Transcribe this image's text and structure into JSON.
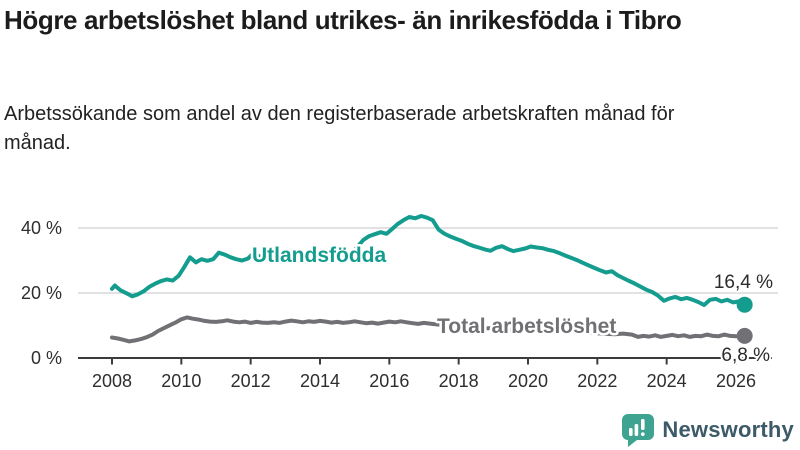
{
  "header": {
    "title": "Högre arbetslöshet bland utrikes- än inrikesfödda i Tibro",
    "subtitle": "Arbetssökande som andel av den registerbaserade arbetskraften månad för månad."
  },
  "footer": {
    "brand": "Newsworthy",
    "logo_icon": "bar-chart-speech-bubble-icon"
  },
  "colors": {
    "accent_teal": "#149D8F",
    "series_gray": "#717175",
    "grid": "#D9D9D9",
    "axis": "#3C3C3C",
    "tick_text": "#2E2E2E",
    "end_label_text": "#2B2B2B",
    "title_text": "#1C1C1C",
    "logo_teal": "#3EA390",
    "wordmark": "#3D5A68"
  },
  "chart_data": {
    "type": "line",
    "title": "Högre arbetslöshet bland utrikes- än inrikesfödda i Tibro",
    "subtitle": "Arbetssökande som andel av den registerbaserade arbetskraften månad för månad.",
    "legend": "inline-series-labels",
    "grid": "horizontal-only",
    "x_axis": {
      "ticks": [
        2008,
        2010,
        2012,
        2014,
        2016,
        2018,
        2020,
        2022,
        2024,
        2026
      ],
      "range": [
        2007.8,
        2026.6
      ]
    },
    "y_axis": {
      "unit": "%",
      "ticks": [
        0,
        20,
        40
      ],
      "tick_labels": [
        "0 %",
        "20 %",
        "40 %"
      ],
      "range": [
        0,
        47
      ]
    },
    "series": [
      {
        "name": "Utlandsfödda",
        "color": "#149D8F",
        "end_value": 16.4,
        "end_label": "16,4 %",
        "points": [
          [
            2008.0,
            21.3
          ],
          [
            2008.08,
            22.3
          ],
          [
            2008.25,
            20.8
          ],
          [
            2008.42,
            19.9
          ],
          [
            2008.58,
            19.0
          ],
          [
            2008.75,
            19.6
          ],
          [
            2008.92,
            20.6
          ],
          [
            2009.08,
            21.9
          ],
          [
            2009.25,
            22.9
          ],
          [
            2009.42,
            23.7
          ],
          [
            2009.58,
            24.2
          ],
          [
            2009.75,
            23.8
          ],
          [
            2009.92,
            25.3
          ],
          [
            2010.08,
            27.9
          ],
          [
            2010.25,
            31.0
          ],
          [
            2010.42,
            29.4
          ],
          [
            2010.58,
            30.4
          ],
          [
            2010.75,
            29.9
          ],
          [
            2010.92,
            30.4
          ],
          [
            2011.08,
            32.4
          ],
          [
            2011.25,
            31.8
          ],
          [
            2011.42,
            31.0
          ],
          [
            2011.58,
            30.4
          ],
          [
            2011.75,
            30.0
          ],
          [
            2011.92,
            30.6
          ],
          [
            2012.08,
            32.2
          ],
          [
            2012.25,
            31.3
          ],
          [
            2012.42,
            30.6
          ],
          [
            2012.58,
            30.1
          ],
          [
            2012.75,
            30.4
          ],
          [
            2012.92,
            29.8
          ],
          [
            2013.08,
            30.6
          ],
          [
            2013.25,
            30.0
          ],
          [
            2013.42,
            30.4
          ],
          [
            2013.58,
            29.7
          ],
          [
            2013.75,
            30.2
          ],
          [
            2013.92,
            29.8
          ],
          [
            2014.08,
            30.3
          ],
          [
            2014.25,
            29.8
          ],
          [
            2014.42,
            30.0
          ],
          [
            2014.58,
            30.5
          ],
          [
            2014.75,
            31.2
          ],
          [
            2014.92,
            32.2
          ],
          [
            2015.08,
            34.2
          ],
          [
            2015.25,
            36.3
          ],
          [
            2015.42,
            37.5
          ],
          [
            2015.58,
            38.1
          ],
          [
            2015.75,
            38.7
          ],
          [
            2015.92,
            38.2
          ],
          [
            2016.08,
            39.7
          ],
          [
            2016.25,
            41.3
          ],
          [
            2016.42,
            42.5
          ],
          [
            2016.58,
            43.4
          ],
          [
            2016.75,
            43.0
          ],
          [
            2016.92,
            43.7
          ],
          [
            2017.08,
            43.2
          ],
          [
            2017.25,
            42.4
          ],
          [
            2017.42,
            39.5
          ],
          [
            2017.58,
            38.3
          ],
          [
            2017.75,
            37.4
          ],
          [
            2017.92,
            36.7
          ],
          [
            2018.08,
            36.1
          ],
          [
            2018.25,
            35.2
          ],
          [
            2018.42,
            34.5
          ],
          [
            2018.58,
            34.0
          ],
          [
            2018.75,
            33.4
          ],
          [
            2018.92,
            33.0
          ],
          [
            2019.08,
            33.9
          ],
          [
            2019.25,
            34.4
          ],
          [
            2019.42,
            33.5
          ],
          [
            2019.58,
            32.9
          ],
          [
            2019.75,
            33.3
          ],
          [
            2019.92,
            33.7
          ],
          [
            2020.08,
            34.3
          ],
          [
            2020.25,
            34.0
          ],
          [
            2020.42,
            33.8
          ],
          [
            2020.58,
            33.3
          ],
          [
            2020.75,
            32.9
          ],
          [
            2020.92,
            32.2
          ],
          [
            2021.08,
            31.5
          ],
          [
            2021.25,
            30.8
          ],
          [
            2021.42,
            30.1
          ],
          [
            2021.58,
            29.3
          ],
          [
            2021.75,
            28.5
          ],
          [
            2021.92,
            27.7
          ],
          [
            2022.08,
            27.0
          ],
          [
            2022.25,
            26.3
          ],
          [
            2022.42,
            26.7
          ],
          [
            2022.58,
            25.5
          ],
          [
            2022.75,
            24.6
          ],
          [
            2022.92,
            23.7
          ],
          [
            2023.08,
            22.9
          ],
          [
            2023.25,
            21.9
          ],
          [
            2023.42,
            21.0
          ],
          [
            2023.58,
            20.3
          ],
          [
            2023.75,
            19.2
          ],
          [
            2023.92,
            17.6
          ],
          [
            2024.08,
            18.3
          ],
          [
            2024.25,
            18.8
          ],
          [
            2024.42,
            18.1
          ],
          [
            2024.58,
            18.5
          ],
          [
            2024.75,
            17.9
          ],
          [
            2024.92,
            17.2
          ],
          [
            2025.08,
            16.3
          ],
          [
            2025.25,
            17.9
          ],
          [
            2025.42,
            18.2
          ],
          [
            2025.58,
            17.4
          ],
          [
            2025.75,
            17.9
          ],
          [
            2025.92,
            17.1
          ],
          [
            2026.08,
            17.4
          ],
          [
            2026.25,
            16.4
          ]
        ]
      },
      {
        "name": "Total arbetslöshet",
        "color": "#717175",
        "end_value": 6.8,
        "end_label": "6,8 %",
        "points": [
          [
            2008.0,
            6.3
          ],
          [
            2008.17,
            6.0
          ],
          [
            2008.33,
            5.6
          ],
          [
            2008.5,
            5.1
          ],
          [
            2008.67,
            5.4
          ],
          [
            2008.83,
            5.8
          ],
          [
            2009.0,
            6.4
          ],
          [
            2009.17,
            7.2
          ],
          [
            2009.33,
            8.3
          ],
          [
            2009.5,
            9.2
          ],
          [
            2009.67,
            10.1
          ],
          [
            2009.83,
            10.9
          ],
          [
            2010.0,
            11.9
          ],
          [
            2010.17,
            12.5
          ],
          [
            2010.33,
            12.1
          ],
          [
            2010.5,
            11.8
          ],
          [
            2010.67,
            11.4
          ],
          [
            2010.83,
            11.2
          ],
          [
            2011.0,
            11.1
          ],
          [
            2011.17,
            11.3
          ],
          [
            2011.33,
            11.6
          ],
          [
            2011.5,
            11.2
          ],
          [
            2011.67,
            11.0
          ],
          [
            2011.83,
            11.2
          ],
          [
            2012.0,
            10.8
          ],
          [
            2012.17,
            11.1
          ],
          [
            2012.33,
            10.9
          ],
          [
            2012.5,
            10.8
          ],
          [
            2012.67,
            11.0
          ],
          [
            2012.83,
            10.8
          ],
          [
            2013.0,
            11.2
          ],
          [
            2013.17,
            11.5
          ],
          [
            2013.33,
            11.3
          ],
          [
            2013.5,
            11.0
          ],
          [
            2013.67,
            11.3
          ],
          [
            2013.83,
            11.1
          ],
          [
            2014.0,
            11.4
          ],
          [
            2014.17,
            11.2
          ],
          [
            2014.33,
            10.9
          ],
          [
            2014.5,
            11.1
          ],
          [
            2014.67,
            10.8
          ],
          [
            2014.83,
            11.0
          ],
          [
            2015.0,
            11.3
          ],
          [
            2015.17,
            11.0
          ],
          [
            2015.33,
            10.7
          ],
          [
            2015.5,
            10.9
          ],
          [
            2015.67,
            10.6
          ],
          [
            2015.83,
            10.9
          ],
          [
            2016.0,
            11.2
          ],
          [
            2016.17,
            11.0
          ],
          [
            2016.33,
            11.3
          ],
          [
            2016.5,
            11.0
          ],
          [
            2016.67,
            10.7
          ],
          [
            2016.83,
            10.5
          ],
          [
            2017.0,
            10.8
          ],
          [
            2017.17,
            10.6
          ],
          [
            2017.33,
            10.4
          ],
          [
            2017.5,
            10.2
          ],
          [
            2017.67,
            10.0
          ],
          [
            2017.83,
            9.8
          ],
          [
            2018.0,
            9.9
          ],
          [
            2018.25,
            9.6
          ],
          [
            2018.5,
            9.3
          ],
          [
            2018.75,
            9.1
          ],
          [
            2019.0,
            9.2
          ],
          [
            2019.25,
            8.9
          ],
          [
            2019.5,
            8.7
          ],
          [
            2019.75,
            8.9
          ],
          [
            2020.0,
            9.1
          ],
          [
            2020.25,
            9.4
          ],
          [
            2020.5,
            9.2
          ],
          [
            2020.75,
            8.9
          ],
          [
            2021.0,
            8.6
          ],
          [
            2021.25,
            8.3
          ],
          [
            2021.5,
            8.0
          ],
          [
            2021.75,
            7.8
          ],
          [
            2022.0,
            7.6
          ],
          [
            2022.25,
            7.4
          ],
          [
            2022.5,
            7.3
          ],
          [
            2022.75,
            7.5
          ],
          [
            2023.0,
            7.2
          ],
          [
            2023.17,
            6.5
          ],
          [
            2023.33,
            6.8
          ],
          [
            2023.5,
            6.6
          ],
          [
            2023.67,
            7.0
          ],
          [
            2023.83,
            6.5
          ],
          [
            2024.0,
            6.8
          ],
          [
            2024.17,
            7.1
          ],
          [
            2024.33,
            6.7
          ],
          [
            2024.5,
            7.0
          ],
          [
            2024.67,
            6.5
          ],
          [
            2024.83,
            6.8
          ],
          [
            2025.0,
            6.7
          ],
          [
            2025.17,
            7.2
          ],
          [
            2025.33,
            6.8
          ],
          [
            2025.5,
            6.7
          ],
          [
            2025.67,
            7.2
          ],
          [
            2025.83,
            6.8
          ],
          [
            2026.0,
            6.7
          ],
          [
            2026.25,
            6.8
          ]
        ]
      }
    ]
  }
}
